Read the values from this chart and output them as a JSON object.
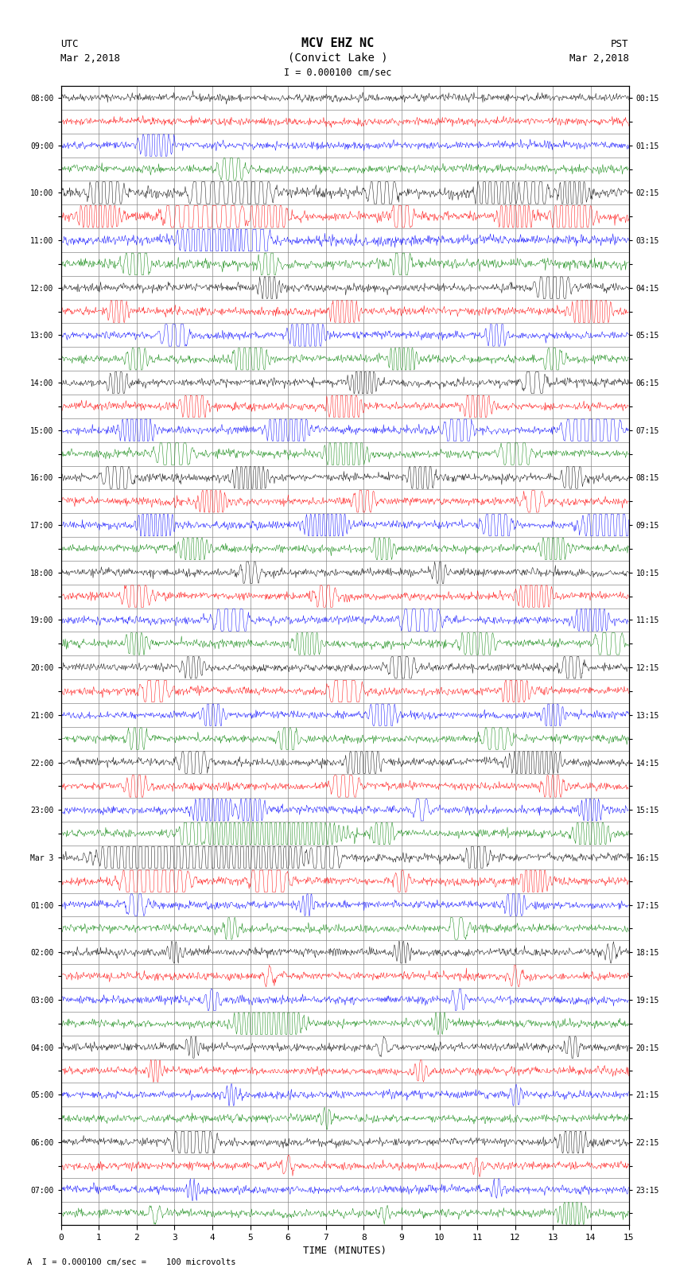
{
  "title_line1": "MCV EHZ NC",
  "title_line2": "(Convict Lake )",
  "scale_label": "I = 0.000100 cm/sec",
  "left_label_top": "UTC",
  "left_label_date": "Mar 2,2018",
  "right_label_top": "PST",
  "right_label_date": "Mar 2,2018",
  "bottom_label": "TIME (MINUTES)",
  "footnote": "A  I = 0.000100 cm/sec =    100 microvolts",
  "n_rows": 48,
  "x_ticks": [
    0,
    1,
    2,
    3,
    4,
    5,
    6,
    7,
    8,
    9,
    10,
    11,
    12,
    13,
    14,
    15
  ],
  "colors_cycle": [
    "black",
    "red",
    "blue",
    "green"
  ],
  "background_color": "#ffffff",
  "grid_color": "#888888"
}
